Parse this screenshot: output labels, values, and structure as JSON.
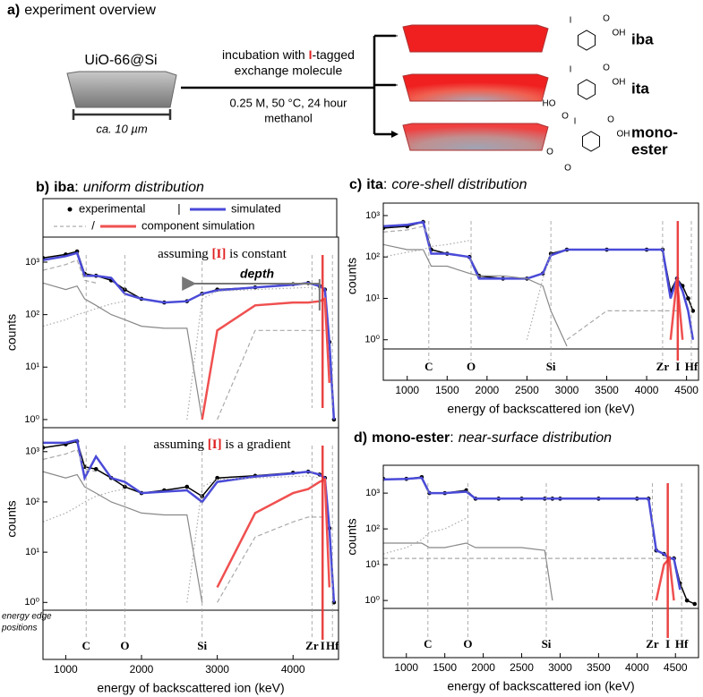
{
  "overview": {
    "title_letter": "a)",
    "title": "experiment overview",
    "sample": "UiO-66@Si",
    "scale": "ca. 10 µm",
    "step_line1": [
      "incubation with ",
      "I",
      "-tagged"
    ],
    "step_line2": "exchange molecule",
    "conditions": "0.25 M, 50 °C, 24 hour",
    "solvent": "methanol",
    "products": [
      {
        "name_lines": [
          "iba"
        ],
        "atoms": [
          {
            "label": "I",
            "color": "#c040c0"
          },
          {
            "label": "O"
          },
          {
            "label": "OH"
          }
        ]
      },
      {
        "name_lines": [
          "ita"
        ],
        "atoms": [
          {
            "label": "I",
            "color": "#c040c0"
          },
          {
            "label": "O"
          },
          {
            "label": "OH"
          },
          {
            "label": "HO"
          },
          {
            "label": "O"
          }
        ]
      },
      {
        "name_lines": [
          "mono-",
          "ester"
        ],
        "atoms": [
          {
            "label": "I",
            "color": "#c040c0"
          },
          {
            "label": "O"
          },
          {
            "label": "OH"
          },
          {
            "label": "O"
          },
          {
            "label": "O"
          }
        ]
      }
    ]
  },
  "chart_data": [
    {
      "type": "line",
      "title_parts": [
        "b)",
        "iba",
        ":",
        "uniform distribution"
      ],
      "legend_separators": [
        "|",
        "/"
      ],
      "annotation_parts": [
        "assuming ",
        "[I]",
        " is constant"
      ],
      "arrow_label": "depth",
      "ylabel": "counts",
      "log_y": true,
      "ylim": [
        0.7,
        3000
      ],
      "yticks": [
        {
          "value": 1,
          "label": "10⁰"
        },
        {
          "value": 10,
          "label": "10¹"
        },
        {
          "value": 100,
          "label": "10²"
        },
        {
          "value": 1000,
          "label": "10³"
        }
      ],
      "xlim": [
        700,
        4600
      ],
      "x": [
        700,
        1000,
        1150,
        1250,
        1400,
        1600,
        1780,
        2000,
        2300,
        2600,
        2800,
        3000,
        3500,
        4000,
        4200,
        4350,
        4420,
        4480,
        4540
      ],
      "series": [
        {
          "name": "experimental",
          "color": "#000000",
          "style": "dots",
          "values": [
            1200,
            1400,
            1600,
            600,
            550,
            450,
            300,
            200,
            170,
            180,
            250,
            300,
            330,
            380,
            400,
            350,
            300,
            30,
            1
          ]
        },
        {
          "name": "simulated",
          "color": "#4a4ad8",
          "style": "line",
          "values": [
            1100,
            1300,
            1500,
            550,
            550,
            500,
            250,
            200,
            170,
            180,
            250,
            290,
            330,
            370,
            400,
            350,
            300,
            30,
            1
          ]
        },
        {
          "color": "#888888",
          "style": "solid-thin",
          "values": [
            400,
            300,
            350,
            200,
            150,
            100,
            80,
            60,
            55,
            55,
            1,
            null,
            null,
            null,
            null,
            null,
            null,
            null,
            null
          ]
        },
        {
          "color": "#aaaaaa",
          "style": "dotted",
          "values": [
            60,
            80,
            100,
            110,
            130,
            160,
            180,
            null,
            null,
            1,
            200,
            280,
            300,
            320,
            330,
            300,
            null,
            null,
            null
          ]
        },
        {
          "color": "#aaaaaa",
          "style": "dashed",
          "values": [
            700,
            900,
            1100,
            450,
            400,
            null,
            null,
            null,
            null,
            null,
            null,
            1,
            50,
            50,
            50,
            50,
            50,
            null,
            null
          ]
        },
        {
          "name": "component simulation",
          "color": "#f05050",
          "style": "line",
          "values": [
            null,
            null,
            null,
            null,
            null,
            null,
            null,
            null,
            null,
            null,
            1,
            50,
            150,
            170,
            170,
            180,
            200,
            5,
            null
          ]
        }
      ]
    },
    {
      "type": "line",
      "annotation_parts": [
        "assuming ",
        "[I]",
        " is a gradient"
      ],
      "ylabel": "counts",
      "log_y": true,
      "ylim": [
        0.7,
        3000
      ],
      "yticks": [
        {
          "value": 1,
          "label": "10⁰"
        },
        {
          "value": 10,
          "label": "10¹"
        },
        {
          "value": 100,
          "label": "10²"
        },
        {
          "value": 1000,
          "label": "10³"
        }
      ],
      "xlim": [
        700,
        4600
      ],
      "xticks": [
        1000,
        2000,
        3000,
        4000
      ],
      "xlabel": "energy of backscattered ion (keV)",
      "edge_note": [
        "energy edge",
        "positions"
      ],
      "edges": [
        {
          "label": "C",
          "energy": 1270,
          "color": "#999999"
        },
        {
          "label": "O",
          "energy": 1780,
          "color": "#999999"
        },
        {
          "label": "Si",
          "energy": 2800,
          "color": "#999999"
        },
        {
          "label": "Zr",
          "energy": 4250,
          "color": "#999999"
        },
        {
          "label": "I",
          "energy": 4390,
          "color": "#e83030"
        },
        {
          "label": "Hf",
          "energy": 4520,
          "color": "#999999"
        }
      ],
      "x": [
        700,
        1000,
        1150,
        1250,
        1400,
        1600,
        1780,
        2000,
        2300,
        2600,
        2800,
        3000,
        3500,
        4000,
        4200,
        4350,
        4420,
        4480,
        4540
      ],
      "series": [
        {
          "color": "#000000",
          "style": "dots",
          "values": [
            1200,
            1400,
            1600,
            500,
            450,
            300,
            200,
            150,
            170,
            200,
            130,
            300,
            330,
            380,
            400,
            350,
            300,
            30,
            1
          ]
        },
        {
          "color": "#4a4ad8",
          "style": "line",
          "values": [
            1500,
            1500,
            1700,
            300,
            800,
            300,
            250,
            150,
            160,
            170,
            100,
            250,
            320,
            370,
            400,
            350,
            300,
            30,
            1
          ]
        },
        {
          "color": "#888888",
          "style": "solid-thin",
          "values": [
            400,
            300,
            350,
            200,
            150,
            100,
            80,
            60,
            55,
            55,
            1,
            null,
            null,
            null,
            null,
            null,
            null,
            null,
            null
          ]
        },
        {
          "color": "#aaaaaa",
          "style": "dotted",
          "values": [
            40,
            60,
            80,
            100,
            130,
            160,
            180,
            null,
            null,
            1,
            200,
            280,
            300,
            320,
            330,
            300,
            null,
            null,
            null
          ]
        },
        {
          "color": "#aaaaaa",
          "style": "dashed",
          "values": [
            700,
            900,
            1100,
            450,
            400,
            null,
            null,
            null,
            null,
            null,
            null,
            1,
            20,
            40,
            50,
            50,
            50,
            null,
            null
          ]
        },
        {
          "color": "#f05050",
          "style": "line",
          "values": [
            null,
            null,
            null,
            null,
            null,
            null,
            null,
            null,
            null,
            null,
            null,
            2,
            60,
            150,
            180,
            250,
            280,
            2,
            null
          ]
        }
      ]
    },
    {
      "type": "line",
      "title_parts": [
        "c)",
        "ita",
        ":",
        "core-shell distribution"
      ],
      "ylabel": "counts",
      "log_y": true,
      "ylim": [
        0.6,
        2000
      ],
      "yticks": [
        {
          "value": 1,
          "label": "10⁰"
        },
        {
          "value": 10,
          "label": "10¹"
        },
        {
          "value": 100,
          "label": "10²"
        },
        {
          "value": 1000,
          "label": "10³"
        }
      ],
      "xlim": [
        700,
        4650
      ],
      "xticks": [
        1000,
        1500,
        2000,
        2500,
        3000,
        3500,
        4000,
        4500
      ],
      "xlabel": "energy of backscattered ion (keV)",
      "edges": [
        {
          "label": "C",
          "energy": 1270,
          "color": "#999999"
        },
        {
          "label": "O",
          "energy": 1800,
          "color": "#999999"
        },
        {
          "label": "Si",
          "energy": 2800,
          "color": "#999999"
        },
        {
          "label": "Zr",
          "energy": 4200,
          "color": "#999999"
        },
        {
          "label": "I",
          "energy": 4390,
          "color": "#e83030"
        },
        {
          "label": "Hf",
          "energy": 4560,
          "color": "#999999"
        }
      ],
      "x": [
        700,
        1000,
        1200,
        1300,
        1500,
        1780,
        1900,
        2200,
        2500,
        2700,
        2800,
        3000,
        3500,
        4000,
        4200,
        4300,
        4380,
        4450,
        4520,
        4580
      ],
      "series": [
        {
          "color": "#000000",
          "style": "dots",
          "values": [
            500,
            550,
            700,
            150,
            120,
            100,
            35,
            30,
            30,
            40,
            120,
            150,
            150,
            150,
            150,
            15,
            30,
            20,
            10,
            5
          ]
        },
        {
          "color": "#4a4ad8",
          "style": "line",
          "values": [
            550,
            600,
            700,
            120,
            120,
            100,
            30,
            30,
            30,
            40,
            110,
            150,
            150,
            150,
            150,
            10,
            30,
            15,
            5,
            1
          ]
        },
        {
          "color": "#888888",
          "style": "solid-thin",
          "values": [
            200,
            150,
            150,
            60,
            60,
            40,
            35,
            35,
            30,
            20,
            5,
            0.7,
            null,
            null,
            null,
            null,
            null,
            null,
            null,
            null
          ]
        },
        {
          "color": "#aaaaaa",
          "style": "dotted",
          "values": [
            100,
            130,
            150,
            180,
            200,
            250,
            null,
            null,
            1,
            30,
            120,
            null,
            null,
            null,
            null,
            null,
            null,
            null,
            null,
            null
          ]
        },
        {
          "color": "#aaaaaa",
          "style": "dashed",
          "values": [
            400,
            450,
            550,
            250,
            null,
            null,
            null,
            null,
            null,
            null,
            null,
            1,
            5,
            5,
            5,
            5,
            5,
            null,
            null,
            null
          ]
        },
        {
          "color": "#f05050",
          "style": "line",
          "values": [
            null,
            null,
            null,
            null,
            null,
            null,
            null,
            null,
            null,
            null,
            null,
            null,
            null,
            null,
            null,
            1,
            30,
            1,
            null,
            null
          ]
        }
      ]
    },
    {
      "type": "line",
      "title_parts": [
        "d)",
        "mono-ester",
        ":",
        "near-surface distribution"
      ],
      "ylabel": "counts",
      "log_y": true,
      "ylim": [
        0.6,
        6000
      ],
      "yticks": [
        {
          "value": 1,
          "label": "10⁰"
        },
        {
          "value": 10,
          "label": "10¹"
        },
        {
          "value": 100,
          "label": "10²"
        },
        {
          "value": 1000,
          "label": "10³"
        }
      ],
      "xlim": [
        700,
        4800
      ],
      "xticks": [
        1000,
        1500,
        2000,
        2500,
        3000,
        3500,
        4000,
        4500
      ],
      "xlabel": "energy of backscattered ion (keV)",
      "edges": [
        {
          "label": "C",
          "energy": 1280,
          "color": "#999999"
        },
        {
          "label": "O",
          "energy": 1800,
          "color": "#999999"
        },
        {
          "label": "Si",
          "energy": 2820,
          "color": "#999999"
        },
        {
          "label": "Zr",
          "energy": 4200,
          "color": "#999999"
        },
        {
          "label": "I",
          "energy": 4400,
          "color": "#e83030"
        },
        {
          "label": "Hf",
          "energy": 4580,
          "color": "#999999"
        }
      ],
      "x": [
        700,
        1000,
        1200,
        1300,
        1500,
        1780,
        1900,
        2200,
        2500,
        2800,
        2900,
        3000,
        3500,
        4000,
        4150,
        4250,
        4350,
        4420,
        4480,
        4560,
        4650,
        4750
      ],
      "series": [
        {
          "color": "#000000",
          "style": "dots",
          "values": [
            2500,
            2500,
            2800,
            1000,
            1000,
            1200,
            700,
            700,
            700,
            700,
            700,
            700,
            700,
            700,
            700,
            25,
            20,
            15,
            15,
            3,
            1,
            0.8
          ]
        },
        {
          "color": "#4a4ad8",
          "style": "line",
          "values": [
            2400,
            2500,
            2700,
            1000,
            1000,
            1100,
            700,
            700,
            700,
            700,
            700,
            700,
            700,
            700,
            700,
            25,
            20,
            15,
            15,
            2,
            null,
            null
          ]
        },
        {
          "color": "#888888",
          "style": "solid-thin",
          "values": [
            40,
            40,
            40,
            30,
            30,
            40,
            30,
            30,
            30,
            25,
            1,
            null,
            null,
            null,
            null,
            null,
            null,
            null,
            null,
            null,
            null,
            null
          ]
        },
        {
          "color": "#aaaaaa",
          "style": "dotted",
          "values": [
            20,
            30,
            50,
            80,
            100,
            200,
            null,
            null,
            null,
            null,
            null,
            null,
            null,
            null,
            null,
            null,
            null,
            null,
            null,
            null,
            null,
            null
          ]
        },
        {
          "color": "#aaaaaa",
          "style": "dashed",
          "values": [
            15,
            15,
            15,
            15,
            15,
            15,
            15,
            15,
            15,
            15,
            15,
            15,
            15,
            15,
            15,
            15,
            15,
            15,
            null,
            null,
            null,
            null
          ]
        },
        {
          "color": "#f05050",
          "style": "line",
          "values": [
            null,
            null,
            null,
            null,
            null,
            null,
            null,
            null,
            null,
            null,
            null,
            null,
            null,
            null,
            null,
            1,
            10,
            15,
            1,
            null,
            null,
            null
          ]
        }
      ]
    }
  ]
}
